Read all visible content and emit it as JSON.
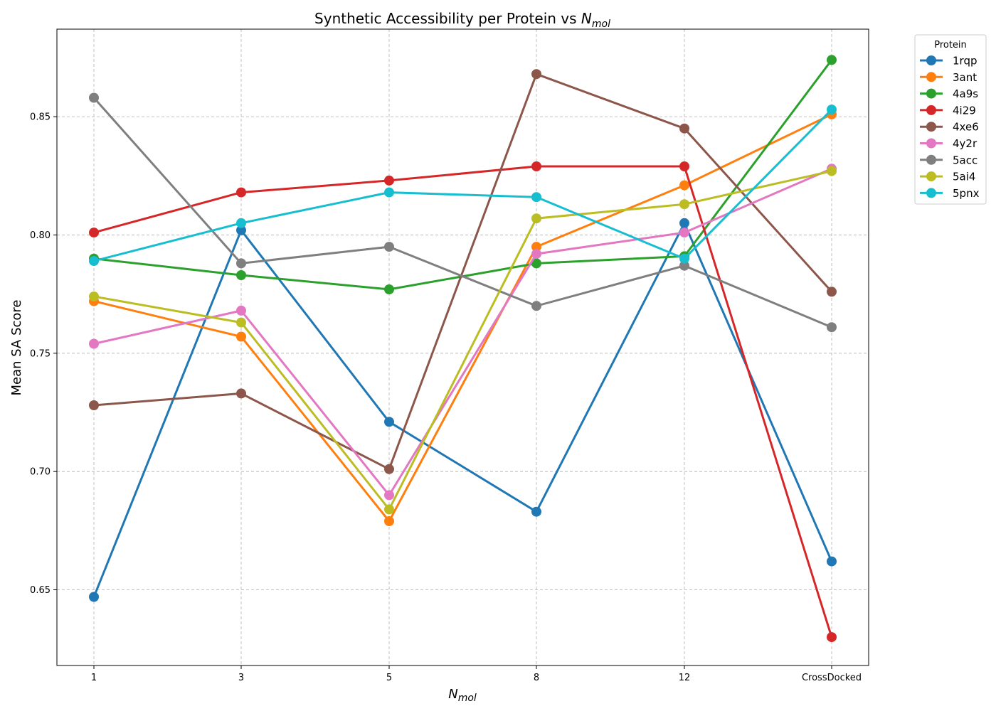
{
  "chart_data": {
    "type": "line",
    "title_main": "Synthetic Accessibility per Protein vs ",
    "title_var": "N",
    "title_sub": "mol",
    "xlabel_var": "N",
    "xlabel_sub": "mol",
    "ylabel": "Mean SA Score",
    "categories": [
      "1",
      "3",
      "5",
      "8",
      "12",
      "CrossDocked"
    ],
    "ylim": [
      0.618,
      0.887
    ],
    "yticks": [
      "0.65",
      "0.70",
      "0.75",
      "0.80",
      "0.85"
    ],
    "grid": true,
    "legend": {
      "title": "Protein",
      "placement": "outside-top-right"
    },
    "series": [
      {
        "name": "1rqp",
        "color": "#1f77b4",
        "values": [
          0.647,
          0.802,
          0.721,
          0.683,
          0.805,
          0.662
        ]
      },
      {
        "name": "3ant",
        "color": "#ff7f0e",
        "values": [
          0.772,
          0.757,
          0.679,
          0.795,
          0.821,
          0.851
        ]
      },
      {
        "name": "4a9s",
        "color": "#2ca02c",
        "values": [
          0.79,
          0.783,
          0.777,
          0.788,
          0.791,
          0.874
        ]
      },
      {
        "name": "4i29",
        "color": "#d62728",
        "values": [
          0.801,
          0.818,
          0.823,
          0.829,
          0.829,
          0.63
        ]
      },
      {
        "name": "4xe6",
        "color": "#8c564b",
        "values": [
          0.728,
          0.733,
          0.701,
          0.868,
          0.845,
          0.776
        ]
      },
      {
        "name": "4y2r",
        "color": "#e377c2",
        "values": [
          0.754,
          0.768,
          0.69,
          0.792,
          0.801,
          0.828
        ]
      },
      {
        "name": "5acc",
        "color": "#7f7f7f",
        "values": [
          0.858,
          0.788,
          0.795,
          0.77,
          0.787,
          0.761
        ]
      },
      {
        "name": "5ai4",
        "color": "#bcbd22",
        "values": [
          0.774,
          0.763,
          0.684,
          0.807,
          0.813,
          0.827
        ]
      },
      {
        "name": "5pnx",
        "color": "#17becf",
        "values": [
          0.789,
          0.805,
          0.818,
          0.816,
          0.79,
          0.853
        ]
      }
    ]
  }
}
